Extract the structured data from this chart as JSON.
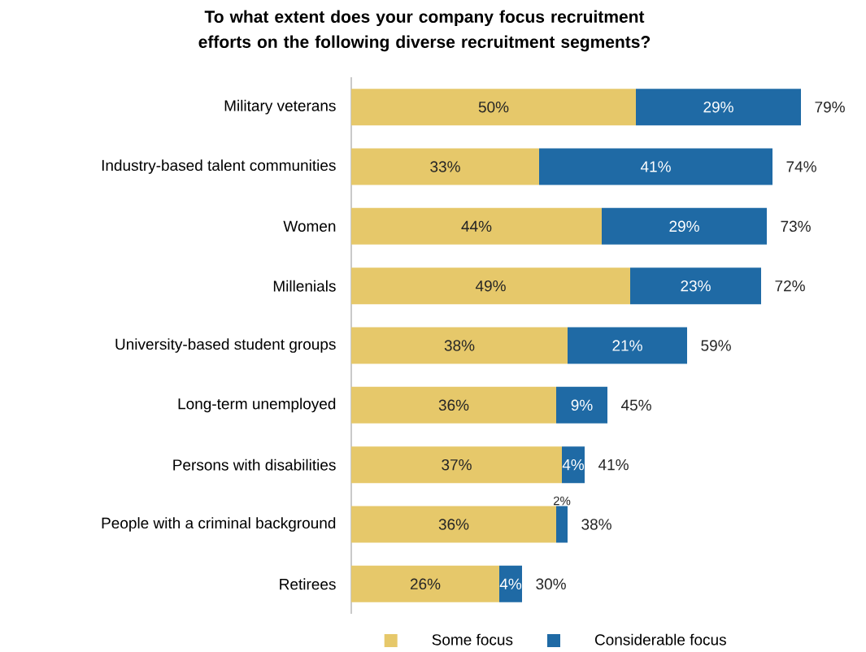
{
  "chart_data": {
    "type": "bar",
    "orientation": "horizontal",
    "stacked": true,
    "title": "To what extent does your company focus recruitment efforts on the following diverse recruitment segments?",
    "categories": [
      "Military veterans",
      "Industry-based talent communities",
      "Women",
      "Millenials",
      "University-based student groups",
      "Long-term unemployed",
      "Persons with disabilities",
      "People with a criminal background",
      "Retirees"
    ],
    "series": [
      {
        "name": "Some focus",
        "color": "#e6c86a",
        "values": [
          50,
          33,
          44,
          49,
          38,
          36,
          37,
          36,
          26
        ],
        "value_labels": [
          "50%",
          "33%",
          "44%",
          "49%",
          "38%",
          "36%",
          "37%",
          "36%",
          "26%"
        ]
      },
      {
        "name": "Considerable focus",
        "color": "#1f6aa5",
        "values": [
          29,
          41,
          29,
          23,
          21,
          9,
          4,
          2,
          4
        ],
        "value_labels": [
          "29%",
          "41%",
          "29%",
          "23%",
          "21%",
          "9%",
          "4%",
          "2%",
          "4%"
        ]
      }
    ],
    "totals": [
      "79%",
      "74%",
      "73%",
      "72%",
      "59%",
      "45%",
      "41%",
      "38%",
      "30%"
    ],
    "legend": "bottom"
  }
}
